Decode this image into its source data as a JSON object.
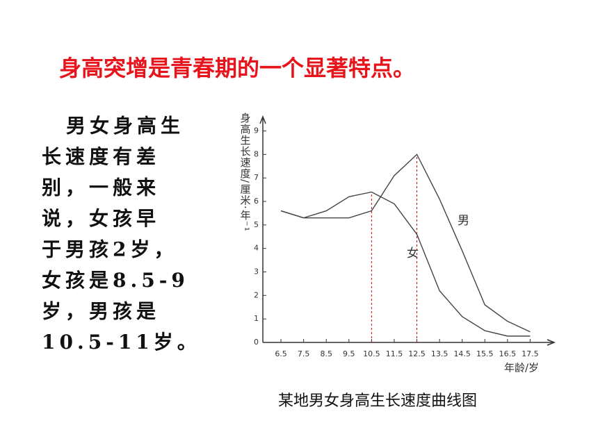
{
  "title": "身高突增是青春期的一个显著特点。",
  "body_lines": [
    "男女身高生",
    "长速度有差",
    "别，一般来",
    "说，女孩早",
    "于男孩2岁，",
    "女孩是8.5-9",
    "岁，男孩是",
    "10.5-11岁。"
  ],
  "caption": "某地男女身高生长速度曲线图",
  "chart_data": {
    "type": "line",
    "y_label": "身高生长速度/厘米·年⁻¹",
    "x_label": "年龄/岁",
    "x": [
      6.5,
      7.5,
      8.5,
      9.5,
      10.5,
      11.5,
      12.5,
      13.5,
      14.5,
      15.5,
      16.5,
      17.5
    ],
    "series": [
      {
        "name": "男",
        "color": "#444444",
        "values": [
          5.6,
          5.3,
          5.3,
          5.3,
          5.6,
          7.1,
          8.0,
          6.1,
          3.9,
          1.6,
          0.9,
          0.45
        ]
      },
      {
        "name": "女",
        "color": "#444444",
        "values": [
          5.6,
          5.3,
          5.6,
          6.2,
          6.4,
          5.9,
          4.6,
          2.2,
          1.1,
          0.5,
          0.27,
          0.27
        ]
      }
    ],
    "reference_lines_x": [
      10.5,
      12.5
    ],
    "reference_color": "#cc0000",
    "xlim": [
      5.7,
      18.5
    ],
    "ylim": [
      0,
      9.4
    ],
    "xticks": [
      6.5,
      7.5,
      8.5,
      9.5,
      10.5,
      11.5,
      12.5,
      13.5,
      14.5,
      15.5,
      16.5,
      17.5
    ],
    "yticks": [
      0,
      1,
      2,
      3,
      4,
      5,
      6,
      7,
      8,
      9
    ]
  }
}
